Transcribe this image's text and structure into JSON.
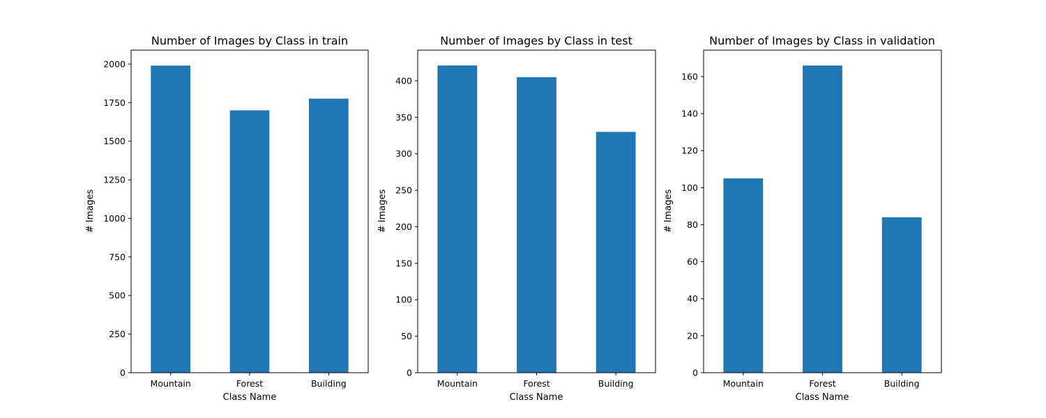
{
  "chart_data": [
    {
      "type": "bar",
      "title": "Number of Images by Class in train",
      "xlabel": "Class Name",
      "ylabel": "# Images",
      "categories": [
        "Mountain",
        "Forest",
        "Building"
      ],
      "values": [
        1990,
        1700,
        1776
      ],
      "ylim": [
        0,
        2090
      ],
      "yticks": [
        0,
        250,
        500,
        750,
        1000,
        1250,
        1500,
        1750,
        2000
      ],
      "bar_color": "#1f77b4",
      "grid": false
    },
    {
      "type": "bar",
      "title": "Number of Images by Class in test",
      "xlabel": "Class Name",
      "ylabel": "# Images",
      "categories": [
        "Mountain",
        "Forest",
        "Building"
      ],
      "values": [
        421,
        405,
        330
      ],
      "ylim": [
        0,
        442
      ],
      "yticks": [
        0,
        50,
        100,
        150,
        200,
        250,
        300,
        350,
        400
      ],
      "bar_color": "#1f77b4",
      "grid": false
    },
    {
      "type": "bar",
      "title": "Number of Images by Class in validation",
      "xlabel": "Class Name",
      "ylabel": "# Images",
      "categories": [
        "Mountain",
        "Forest",
        "Building"
      ],
      "values": [
        105,
        166,
        84
      ],
      "ylim": [
        0,
        174.3
      ],
      "yticks": [
        0,
        20,
        40,
        60,
        80,
        100,
        120,
        140,
        160
      ],
      "bar_color": "#1f77b4",
      "grid": false
    }
  ]
}
